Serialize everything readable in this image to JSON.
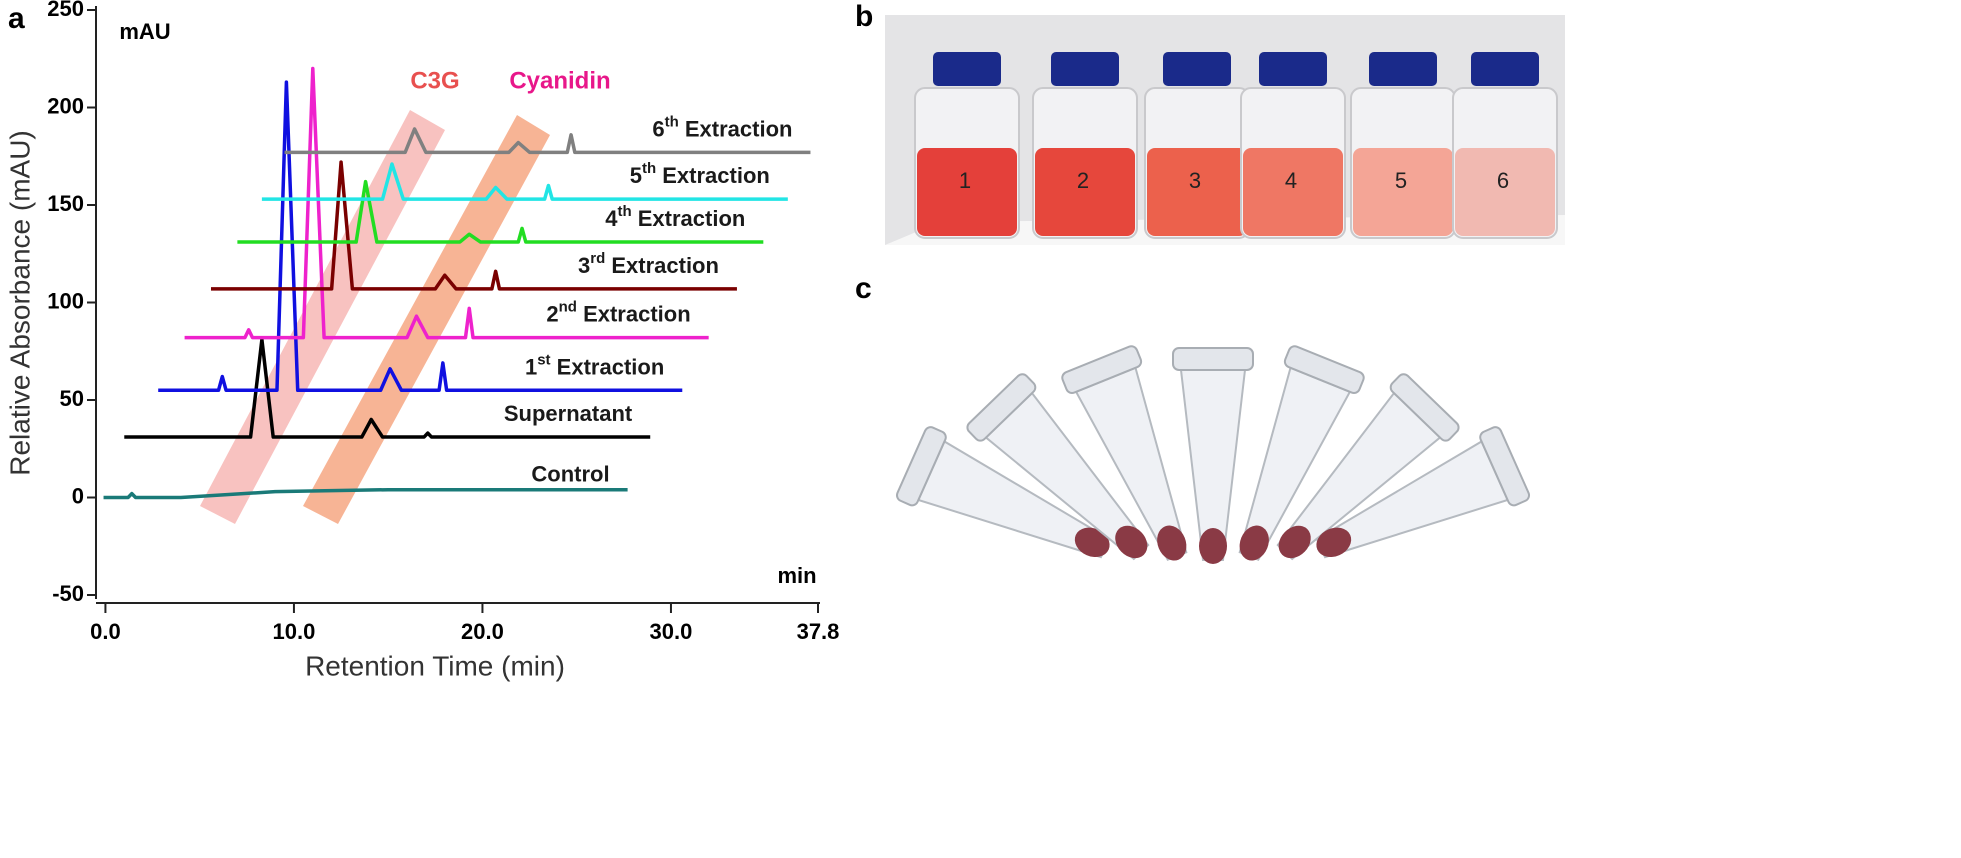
{
  "chart_data": {
    "type": "line",
    "x_title": "Retention Time (min)",
    "y_title": "Relative Absorbance (mAU)",
    "x_unit": "min",
    "y_unit": "mAU",
    "xlim": [
      -0.5,
      37.8
    ],
    "ylim": [
      -50,
      250
    ],
    "xticks": [
      {
        "value": 0,
        "label": "0.0"
      },
      {
        "value": 10,
        "label": "10.0"
      },
      {
        "value": 20,
        "label": "20.0"
      },
      {
        "value": 30,
        "label": "30.0"
      },
      {
        "value": 37.8,
        "label": "37.8"
      }
    ],
    "yticks": [
      -50,
      0,
      50,
      100,
      150,
      200,
      250
    ],
    "annotations": [
      {
        "text": "C3G",
        "color": "#e8504f"
      },
      {
        "text": "Cyanidin",
        "color": "#e8178a"
      }
    ],
    "series": [
      {
        "name": "Control",
        "color": "#1a7a78",
        "x": [
          -0.1,
          1.2,
          1.4,
          1.6,
          4.0,
          9.0,
          15.0,
          27.7
        ],
        "values": [
          0,
          0,
          2,
          0,
          0,
          3,
          4,
          4
        ]
      },
      {
        "name": "Supernatant",
        "color": "#000000",
        "x": [
          1.0,
          7.7,
          8.3,
          8.9,
          13.6,
          14.1,
          14.7,
          16.9,
          17.1,
          17.3,
          28.9
        ],
        "values": [
          31,
          31,
          81,
          31,
          31,
          40,
          31,
          31,
          33,
          31,
          31
        ]
      },
      {
        "name": "1st Extraction",
        "color": "#1010e0",
        "x": [
          2.8,
          6.0,
          6.2,
          6.4,
          9.1,
          9.6,
          10.2,
          14.6,
          15.1,
          15.7,
          17.7,
          17.9,
          18.1,
          30.6
        ],
        "values": [
          55,
          55,
          62,
          55,
          55,
          213,
          55,
          55,
          66,
          55,
          55,
          69,
          55,
          55
        ]
      },
      {
        "name": "2nd Extraction",
        "color": "#ee22cc",
        "x": [
          4.2,
          7.4,
          7.6,
          7.8,
          10.5,
          11.0,
          11.6,
          16.0,
          16.5,
          17.1,
          19.1,
          19.3,
          19.5,
          32.0
        ],
        "values": [
          82,
          82,
          86,
          82,
          82,
          220,
          82,
          82,
          93,
          82,
          82,
          97,
          82,
          82
        ]
      },
      {
        "name": "3rd Extraction",
        "color": "#7a0000",
        "x": [
          5.6,
          12.0,
          12.5,
          13.1,
          17.5,
          18.0,
          18.6,
          20.5,
          20.7,
          20.9,
          33.5
        ],
        "values": [
          107,
          107,
          172,
          107,
          107,
          114,
          107,
          107,
          116,
          107,
          107
        ]
      },
      {
        "name": "4th Extraction",
        "color": "#22dd22",
        "x": [
          7.0,
          13.3,
          13.8,
          14.4,
          18.8,
          19.3,
          19.9,
          21.9,
          22.1,
          22.3,
          34.9
        ],
        "values": [
          131,
          131,
          162,
          131,
          131,
          135,
          131,
          131,
          138,
          131,
          131
        ]
      },
      {
        "name": "5th Extraction",
        "color": "#22e5e5",
        "x": [
          8.3,
          14.7,
          15.2,
          15.8,
          20.2,
          20.7,
          21.3,
          23.3,
          23.5,
          23.7,
          36.2
        ],
        "values": [
          153,
          153,
          171,
          153,
          153,
          159,
          153,
          153,
          160,
          153,
          153
        ]
      },
      {
        "name": "6th Extraction",
        "color": "#808080",
        "x": [
          9.5,
          15.9,
          16.4,
          17.0,
          21.4,
          21.9,
          22.5,
          24.5,
          24.7,
          24.9,
          37.4
        ],
        "values": [
          177,
          177,
          189,
          177,
          177,
          182,
          177,
          177,
          186,
          177,
          177
        ]
      }
    ]
  },
  "panels": {
    "a": "a",
    "b": "b",
    "c": "c"
  },
  "vial_labels": [
    "1",
    "2",
    "3",
    "4",
    "5",
    "6"
  ]
}
